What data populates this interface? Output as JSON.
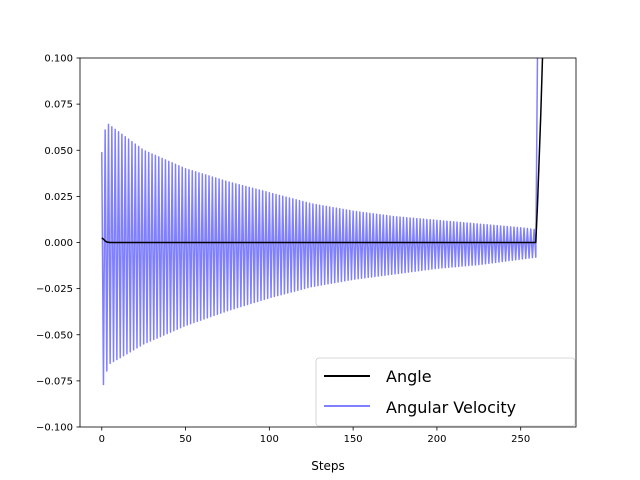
{
  "chart_data": {
    "type": "line",
    "title": "",
    "xlabel": "Steps",
    "ylabel": "",
    "xlim": [
      -13,
      283
    ],
    "ylim": [
      -0.1,
      0.1
    ],
    "x_ticks": [
      0,
      50,
      100,
      150,
      200,
      250
    ],
    "y_ticks": [
      -0.1,
      -0.075,
      -0.05,
      -0.025,
      0.0,
      0.025,
      0.05,
      0.075,
      0.1
    ],
    "x_tick_labels": [
      "0",
      "50",
      "100",
      "150",
      "200",
      "250"
    ],
    "y_tick_labels": [
      "−0.100",
      "−0.075",
      "−0.050",
      "−0.025",
      "0.000",
      "0.025",
      "0.050",
      "0.075",
      "0.100"
    ],
    "grid": false,
    "legend_position": "bottom-right",
    "series": [
      {
        "name": "Angle",
        "color": "#000000",
        "points": [
          [
            0,
            0.0025
          ],
          [
            1,
            0.0018
          ],
          [
            2,
            0.0008
          ],
          [
            3,
            0.0003
          ],
          [
            5,
            0.0
          ],
          [
            10,
            0.0
          ],
          [
            50,
            0.0
          ],
          [
            100,
            0.0
          ],
          [
            150,
            0.0
          ],
          [
            200,
            0.0
          ],
          [
            259,
            0.0
          ],
          [
            260,
            0.02
          ],
          [
            262,
            0.07
          ],
          [
            263,
            0.1
          ]
        ]
      },
      {
        "name": "Angular Velocity",
        "color": "#8080ff",
        "oscillation": {
          "x_start": 0,
          "x_end": 259,
          "peak_points": [
            [
              0,
              0.049
            ],
            [
              2,
              0.061
            ],
            [
              4,
              0.064
            ],
            [
              10,
              0.06
            ],
            [
              25,
              0.05
            ],
            [
              50,
              0.04
            ],
            [
              75,
              0.033
            ],
            [
              100,
              0.027
            ],
            [
              125,
              0.021
            ],
            [
              150,
              0.017
            ],
            [
              175,
              0.014
            ],
            [
              200,
              0.012
            ],
            [
              225,
              0.01
            ],
            [
              250,
              0.008
            ],
            [
              259,
              0.007
            ]
          ],
          "trough_points": [
            [
              0,
              -0.1
            ],
            [
              1,
              -0.077
            ],
            [
              4,
              -0.066
            ],
            [
              10,
              -0.063
            ],
            [
              25,
              -0.055
            ],
            [
              50,
              -0.045
            ],
            [
              75,
              -0.037
            ],
            [
              100,
              -0.03
            ],
            [
              125,
              -0.024
            ],
            [
              150,
              -0.02
            ],
            [
              175,
              -0.017
            ],
            [
              200,
              -0.014
            ],
            [
              225,
              -0.012
            ],
            [
              250,
              -0.009
            ],
            [
              259,
              -0.008
            ]
          ]
        },
        "final_rise": [
          [
            259,
            0.007
          ],
          [
            260,
            0.1
          ]
        ]
      }
    ]
  }
}
